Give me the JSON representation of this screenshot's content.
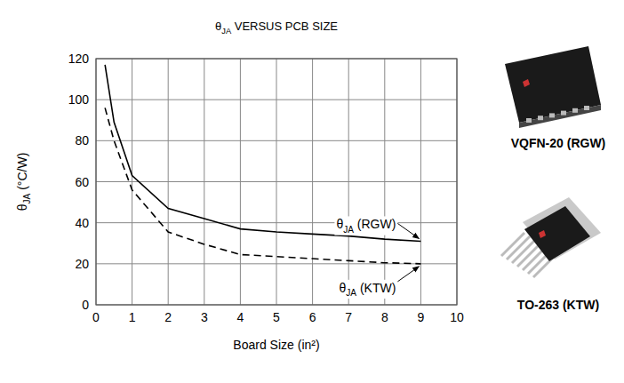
{
  "chart_data": {
    "type": "line",
    "title": "θJA VERSUS PCB SIZE",
    "x_label": "Board Size (in²)",
    "y_label": "θJA (°C/W)",
    "x": [
      0.25,
      0.5,
      1,
      2,
      3,
      4,
      5,
      6,
      7,
      8,
      9
    ],
    "series": [
      {
        "name": "θJA (RGW)",
        "color": "#000000",
        "line_style": "solid",
        "values": [
          117,
          89,
          63,
          47,
          42,
          37,
          35.5,
          34.5,
          33.5,
          32,
          31
        ]
      },
      {
        "name": "θJA (KTW)",
        "color": "#000000",
        "line_style": "dashed",
        "values": [
          96,
          80,
          56,
          35.5,
          29.5,
          24.5,
          23.5,
          22.5,
          21.5,
          20.5,
          20
        ]
      }
    ],
    "annotations": [
      {
        "text": "θJA (RGW)",
        "x": 9,
        "y": 31
      },
      {
        "text": "θJA (KTW)",
        "x": 9,
        "y": 20
      }
    ],
    "packages": [
      "VQFN-20 (RGW)",
      "TO-263 (KTW)"
    ],
    "xlim": [
      0,
      10
    ],
    "ylim": [
      0,
      120
    ],
    "xticks": [
      0,
      1,
      2,
      3,
      4,
      5,
      6,
      7,
      8,
      9,
      10
    ],
    "yticks": [
      0,
      20,
      40,
      60,
      80,
      100,
      120
    ],
    "grid": true
  }
}
